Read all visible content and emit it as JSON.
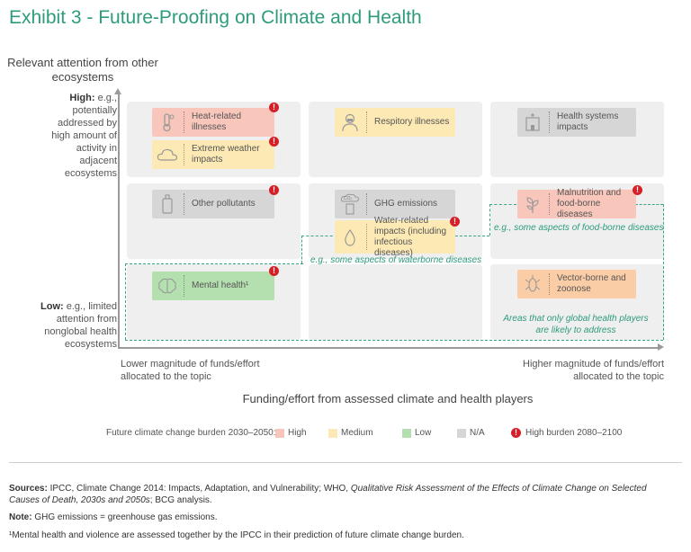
{
  "title": "Exhibit 3 - Future-Proofing on Climate and Health",
  "y_axis": {
    "heading": "Relevant attention from other ecosystems",
    "high_bold": "High:",
    "high_text": " e.g., potentially addressed by high amount of activity in adjacent ecosystems",
    "low_bold": "Low:",
    "low_text": " e.g., limited attention from nonglobal health ecosystems"
  },
  "x_axis": {
    "left_label": "Lower magnitude of funds/effort allocated to the topic",
    "right_label": "Higher magnitude of funds/effort allocated to the topic",
    "title": "Funding/effort from assessed climate and health players"
  },
  "items": {
    "heat": {
      "label": "Heat-related illnesses",
      "burden": "High",
      "high_burden_2080": true
    },
    "extreme": {
      "label": "Extreme weather impacts",
      "burden": "Medium",
      "high_burden_2080": true
    },
    "respiratory": {
      "label": "Respitory illnesses",
      "burden": "Medium",
      "high_burden_2080": false
    },
    "health_systems": {
      "label": "Health systems impacts",
      "burden": "N/A",
      "high_burden_2080": false
    },
    "pollutants": {
      "label": "Other pollutants",
      "burden": "N/A",
      "high_burden_2080": true
    },
    "ghg": {
      "label": "GHG emissions",
      "burden": "N/A",
      "high_burden_2080": false,
      "icon_text": "CO₂"
    },
    "water": {
      "label": "Water-related impacts (including infectious diseases)",
      "burden": "Medium",
      "high_burden_2080": true
    },
    "malnutrition": {
      "label": "Malnutrition and food-borne diseases",
      "burden": "High",
      "high_burden_2080": true
    },
    "mental": {
      "label": "Mental health¹",
      "burden": "Low",
      "high_burden_2080": true
    },
    "vector": {
      "label": "Vector-borne and zoonose",
      "burden": "High",
      "high_burden_2080": false
    }
  },
  "annotations": {
    "waterborne": "e.g., some aspects of waterborne diseases",
    "foodborne": "e.g., some aspects of food-borne diseases",
    "global_only": "Areas that only global health players are likely to address"
  },
  "legend": {
    "heading": "Future climate change  burden 2030–2050:",
    "high": "High",
    "medium": "Medium",
    "low": "Low",
    "na": "N/A",
    "high_burden": "High burden 2080–2100",
    "bang": "!"
  },
  "colors": {
    "high": "#f8c6bb",
    "medium": "#fde9b3",
    "low": "#b4dfae",
    "na": "#d6d6d6",
    "accent": "#2e9b7d",
    "alert": "#d61f26"
  },
  "footnotes": {
    "sources_bold": "Sources:",
    "sources_text": " IPCC, Climate Change 2014: Impacts, Adaptation, and Vulnerability; WHO, ",
    "sources_italic": "Qualitative Risk Assessment of the Effects of Climate Change on Selected Causes of Death, 2030s and 2050s",
    "sources_end": "; BCG analysis.",
    "note_bold": "Note:",
    "note_text": " GHG emissions = greenhouse gas emissions.",
    "footnote1": "¹Mental health and violence are assessed together by the IPCC in their prediction of future climate change burden."
  }
}
